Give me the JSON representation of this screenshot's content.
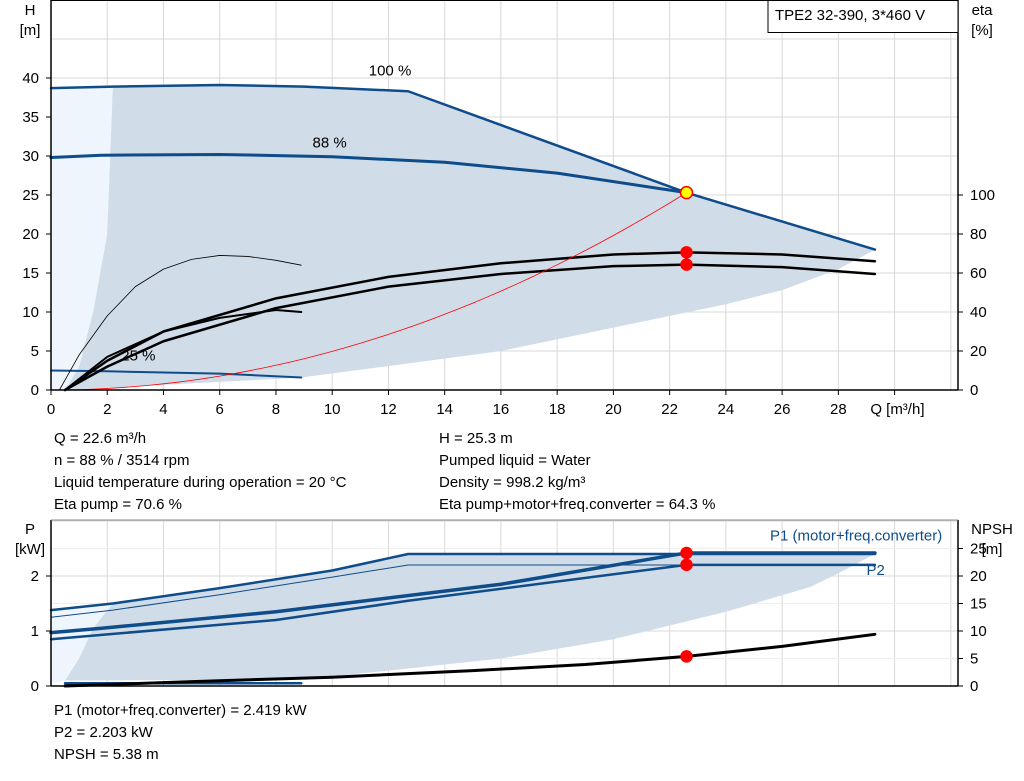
{
  "chart_data": [
    {
      "type": "line",
      "title": "TPE2 32-390, 3*460 V",
      "xlabel": "Q [m³/h]",
      "ylabel": "H\n[m]",
      "y2label": "eta\n[%]",
      "xlim": [
        0,
        32
      ],
      "ylim": [
        0,
        50
      ],
      "y2lim": [
        0,
        128
      ],
      "xticks": [
        0,
        2,
        4,
        6,
        8,
        10,
        12,
        14,
        16,
        18,
        20,
        22,
        24,
        26,
        28
      ],
      "yticks": [
        0,
        5,
        10,
        15,
        20,
        25,
        30,
        35,
        40
      ],
      "y2ticks": [
        0,
        20,
        40,
        60,
        80,
        100
      ],
      "grid": true,
      "colors": {
        "head": "#0f4c8a",
        "eta": "#000000",
        "system": "#ff0000",
        "region": "#d0dce8",
        "region_light": "#eef5fc"
      },
      "curve_labels": [
        {
          "text": "100 %",
          "x": 11.3,
          "y": 40.3
        },
        {
          "text": "88 %",
          "x": 9.3,
          "y": 31.1
        },
        {
          "text": "25 %",
          "x": 2.5,
          "y": 3.8
        }
      ],
      "region": [
        [
          2.2,
          38.9
        ],
        [
          6,
          39.1
        ],
        [
          9,
          38.9
        ],
        [
          12.7,
          38.3
        ],
        [
          22.6,
          25.3
        ],
        [
          29.3,
          18
        ],
        [
          28,
          15.5
        ],
        [
          26,
          12.8
        ],
        [
          24,
          11
        ],
        [
          20,
          8
        ],
        [
          16,
          5
        ],
        [
          12.7,
          3.4
        ],
        [
          8.9,
          1.6
        ],
        [
          0.5,
          0
        ],
        [
          1,
          3
        ],
        [
          1.5,
          10
        ],
        [
          2,
          20
        ]
      ],
      "region_light": [
        [
          0,
          0
        ],
        [
          0,
          38.7
        ],
        [
          2.2,
          38.9
        ],
        [
          2,
          20
        ],
        [
          1.5,
          10
        ],
        [
          1,
          3
        ],
        [
          0.5,
          0
        ]
      ],
      "series": [
        {
          "axis": "H",
          "width": 2.5,
          "color": "#0f4c8a",
          "points": [
            [
              0,
              38.7
            ],
            [
              2.2,
              38.9
            ],
            [
              6,
              39.1
            ],
            [
              9,
              38.9
            ],
            [
              12.7,
              38.3
            ],
            [
              22.6,
              25.3
            ],
            [
              29.3,
              18
            ]
          ]
        },
        {
          "axis": "H",
          "width": 3,
          "color": "#0f4c8a",
          "points": [
            [
              0,
              29.8
            ],
            [
              1.8,
              30.1
            ],
            [
              6,
              30.2
            ],
            [
              10,
              29.9
            ],
            [
              14,
              29.2
            ],
            [
              18,
              27.8
            ],
            [
              22.6,
              25.3
            ]
          ]
        },
        {
          "axis": "H",
          "width": 2,
          "color": "#0f4c8a",
          "points": [
            [
              0,
              2.5
            ],
            [
              2,
              2.4
            ],
            [
              6,
              2.1
            ],
            [
              8.9,
              1.6
            ]
          ]
        },
        {
          "axis": "eta",
          "width": 2.5,
          "color": "#000",
          "points": [
            [
              0.5,
              0
            ],
            [
              2,
              15
            ],
            [
              4,
              30
            ],
            [
              8,
              47
            ],
            [
              12,
              58
            ],
            [
              16,
              65
            ],
            [
              20,
              69.5
            ],
            [
              22.6,
              70.6
            ],
            [
              26,
              69.5
            ],
            [
              29.3,
              66
            ]
          ]
        },
        {
          "axis": "eta",
          "width": 2.5,
          "color": "#000",
          "points": [
            [
              0.5,
              0
            ],
            [
              2,
              12
            ],
            [
              4,
              25
            ],
            [
              8,
              42
            ],
            [
              12,
              53
            ],
            [
              16,
              59.5
            ],
            [
              20,
              63.5
            ],
            [
              22.6,
              64.3
            ],
            [
              26,
              63
            ],
            [
              29.3,
              59.5
            ]
          ]
        },
        {
          "axis": "eta",
          "width": 0.8,
          "color": "#000",
          "points": [
            [
              0.3,
              0
            ],
            [
              1,
              18
            ],
            [
              2,
              38
            ],
            [
              3,
              53
            ],
            [
              4,
              62
            ],
            [
              5,
              67
            ],
            [
              6,
              69
            ],
            [
              7,
              68.5
            ],
            [
              8,
              66.5
            ],
            [
              8.9,
              64
            ]
          ]
        },
        {
          "axis": "eta",
          "width": 2,
          "color": "#000",
          "points": [
            [
              0.5,
              0
            ],
            [
              2,
              17
            ],
            [
              4,
              30
            ],
            [
              6,
              37
            ],
            [
              8,
              41
            ],
            [
              8.9,
              40
            ]
          ]
        },
        {
          "axis": "H",
          "width": 0.8,
          "color": "#ff0000",
          "quadratic_k": 0.04953,
          "points": [
            [
              0,
              0
            ],
            [
              22.6,
              25.3
            ]
          ]
        }
      ],
      "markers": [
        {
          "axis": "H",
          "x": 22.6,
          "y": 25.3,
          "fill": "#ffff00"
        },
        {
          "axis": "eta",
          "x": 22.6,
          "y": 70.6,
          "fill": "#ff0000"
        },
        {
          "axis": "eta",
          "x": 22.6,
          "y": 64.3,
          "fill": "#ff0000"
        }
      ]
    },
    {
      "type": "line",
      "xlabel": "",
      "ylabel": "P\n[kW]",
      "y2label": "NPSH\n[m]",
      "xlim": [
        0,
        32
      ],
      "ylim": [
        0,
        3.05
      ],
      "y2lim": [
        0,
        30.5
      ],
      "yticks": [
        0,
        1,
        2
      ],
      "y2ticks": [
        0,
        5,
        10,
        15,
        20,
        25
      ],
      "grid": true,
      "legend": [
        {
          "text": "P1 (motor+freq.converter)",
          "x": 25.5,
          "y": 2.65
        },
        {
          "text": "P2",
          "x": 29,
          "y": 2.02
        }
      ],
      "region": [
        [
          2.2,
          1.5
        ],
        [
          6,
          1.78
        ],
        [
          10,
          2.1
        ],
        [
          12.7,
          2.4
        ],
        [
          29.3,
          2.4
        ],
        [
          28,
          2.05
        ],
        [
          27,
          1.8
        ],
        [
          24,
          1.35
        ],
        [
          20,
          0.85
        ],
        [
          16,
          0.5
        ],
        [
          12,
          0.28
        ],
        [
          8.9,
          0.12
        ],
        [
          0.5,
          0.1
        ],
        [
          1,
          0.5
        ],
        [
          1.5,
          1.05
        ]
      ],
      "region_light": [
        [
          0,
          0.05
        ],
        [
          0,
          1.38
        ],
        [
          2.2,
          1.5
        ],
        [
          1.5,
          1.05
        ],
        [
          1,
          0.5
        ],
        [
          0.5,
          0.1
        ]
      ],
      "series": [
        {
          "axis": "P",
          "width": 2.5,
          "color": "#0f4c8a",
          "points": [
            [
              0,
              1.38
            ],
            [
              2.2,
              1.5
            ],
            [
              6,
              1.78
            ],
            [
              10,
              2.1
            ],
            [
              12.7,
              2.4
            ],
            [
              29.3,
              2.4
            ]
          ]
        },
        {
          "axis": "P",
          "width": 1,
          "color": "#0f4c8a",
          "points": [
            [
              0,
              1.25
            ],
            [
              2.2,
              1.38
            ],
            [
              6,
              1.66
            ],
            [
              10,
              1.98
            ],
            [
              12.7,
              2.2
            ],
            [
              29.3,
              2.2
            ]
          ]
        },
        {
          "axis": "P",
          "width": 3.5,
          "color": "#0f4c8a",
          "points": [
            [
              0,
              0.97
            ],
            [
              1.8,
              1.05
            ],
            [
              8,
              1.35
            ],
            [
              16,
              1.85
            ],
            [
              22.6,
              2.419
            ],
            [
              29.3,
              2.419
            ]
          ]
        },
        {
          "axis": "P",
          "width": 2.5,
          "color": "#0f4c8a",
          "points": [
            [
              0,
              0.85
            ],
            [
              1.8,
              0.93
            ],
            [
              8,
              1.2
            ],
            [
              12.7,
              1.55
            ],
            [
              22.6,
              2.203
            ],
            [
              29.3,
              2.203
            ]
          ]
        },
        {
          "axis": "P",
          "width": 2.5,
          "color": "#0f4c8a",
          "points": [
            [
              0.5,
              0.05
            ],
            [
              8.9,
              0.05
            ]
          ]
        },
        {
          "axis": "NPSH",
          "width": 3,
          "color": "#000",
          "points": [
            [
              0.5,
              0
            ],
            [
              5,
              0.8
            ],
            [
              10,
              1.6
            ],
            [
              15,
              2.8
            ],
            [
              19,
              3.9
            ],
            [
              22.6,
              5.38
            ],
            [
              26,
              7.2
            ],
            [
              29.3,
              9.4
            ]
          ]
        }
      ],
      "markers": [
        {
          "axis": "P",
          "x": 22.6,
          "y": 2.419,
          "fill": "#ff0000"
        },
        {
          "axis": "P",
          "x": 22.6,
          "y": 2.203,
          "fill": "#ff0000"
        },
        {
          "axis": "NPSH",
          "x": 22.6,
          "y": 5.38,
          "fill": "#ff0000"
        }
      ]
    }
  ],
  "info_top": {
    "left": [
      "Q = 22.6 m³/h",
      "n = 88 % / 3514 rpm",
      "Liquid temperature during operation = 20 °C",
      "Eta pump = 70.6 %"
    ],
    "right": [
      "H = 25.3 m",
      "Pumped liquid = Water",
      "Density = 998.2 kg/m³",
      "Eta pump+motor+freq.converter = 64.3 %"
    ]
  },
  "info_bottom": [
    "P1 (motor+freq.converter) = 2.419 kW",
    "P2 = 2.203 kW",
    "NPSH = 5.38 m"
  ]
}
